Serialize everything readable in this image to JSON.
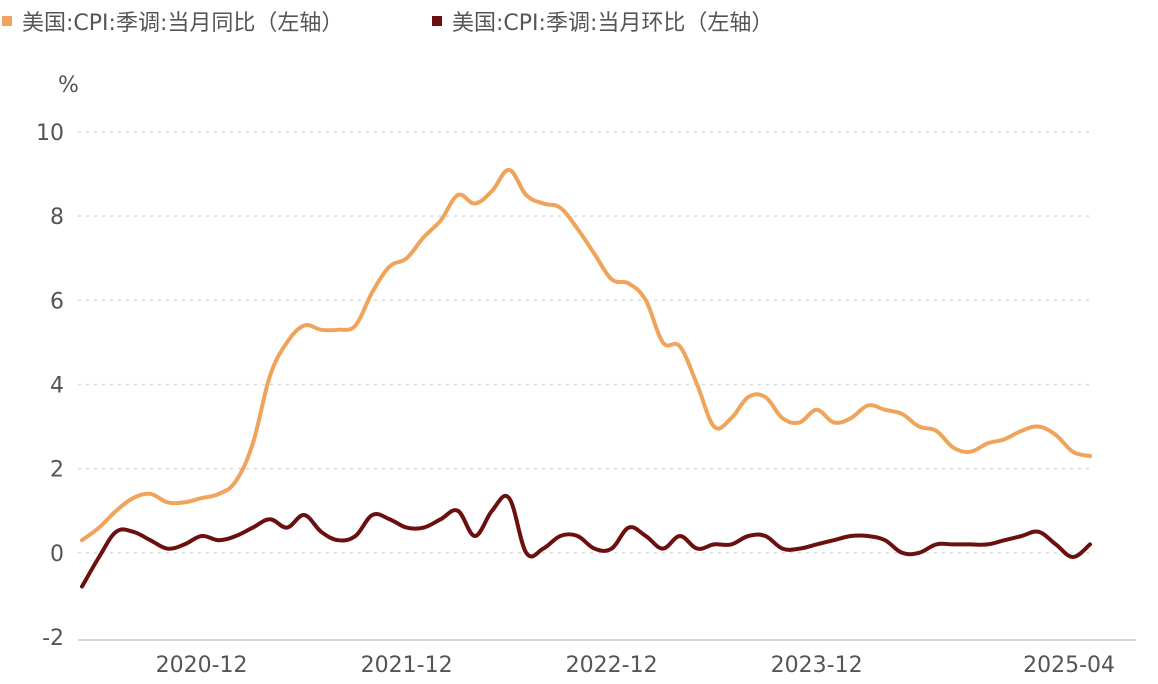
{
  "chart_data": {
    "type": "line",
    "ylabel": "%",
    "ylim": [
      -2,
      10
    ],
    "yticks": [
      10,
      8,
      6,
      4,
      2,
      0,
      -2
    ],
    "x_ticks": [
      "2020-12",
      "2021-12",
      "2022-12",
      "2023-12",
      "2025-04"
    ],
    "x_range": [
      "2020-05",
      "2025-04"
    ],
    "grid": "horizontal dashed",
    "legend": {
      "placement": "top-left",
      "entries": [
        {
          "label": "美国:CPI:季调:当月同比（左轴）",
          "color": "#f0a35a"
        },
        {
          "label": "美国:CPI:季调:当月环比（左轴）",
          "color": "#6b0f0f"
        }
      ]
    },
    "x": [
      "2020-05",
      "2020-06",
      "2020-07",
      "2020-08",
      "2020-09",
      "2020-10",
      "2020-11",
      "2020-12",
      "2021-01",
      "2021-02",
      "2021-03",
      "2021-04",
      "2021-05",
      "2021-06",
      "2021-07",
      "2021-08",
      "2021-09",
      "2021-10",
      "2021-11",
      "2021-12",
      "2022-01",
      "2022-02",
      "2022-03",
      "2022-04",
      "2022-05",
      "2022-06",
      "2022-07",
      "2022-08",
      "2022-09",
      "2022-10",
      "2022-11",
      "2022-12",
      "2023-01",
      "2023-02",
      "2023-03",
      "2023-04",
      "2023-05",
      "2023-06",
      "2023-07",
      "2023-08",
      "2023-09",
      "2023-10",
      "2023-11",
      "2023-12",
      "2024-01",
      "2024-02",
      "2024-03",
      "2024-04",
      "2024-05",
      "2024-06",
      "2024-07",
      "2024-08",
      "2024-09",
      "2024-10",
      "2024-11",
      "2024-12",
      "2025-01",
      "2025-02",
      "2025-03",
      "2025-04"
    ],
    "series": [
      {
        "name": "美国:CPI:季调:当月同比（左轴）",
        "color": "#f0a35a",
        "values": [
          0.3,
          0.6,
          1.0,
          1.3,
          1.4,
          1.2,
          1.2,
          1.3,
          1.4,
          1.7,
          2.6,
          4.2,
          5.0,
          5.4,
          5.3,
          5.3,
          5.4,
          6.2,
          6.8,
          7.0,
          7.5,
          7.9,
          8.5,
          8.3,
          8.6,
          9.1,
          8.5,
          8.3,
          8.2,
          7.7,
          7.1,
          6.5,
          6.4,
          6.0,
          5.0,
          4.9,
          4.0,
          3.0,
          3.2,
          3.7,
          3.7,
          3.2,
          3.1,
          3.4,
          3.1,
          3.2,
          3.5,
          3.4,
          3.3,
          3.0,
          2.9,
          2.5,
          2.4,
          2.6,
          2.7,
          2.9,
          3.0,
          2.8,
          2.4,
          2.3
        ]
      },
      {
        "name": "美国:CPI:季调:当月环比（左轴）",
        "color": "#6b0f0f",
        "values": [
          -0.8,
          -0.1,
          0.5,
          0.5,
          0.3,
          0.1,
          0.2,
          0.4,
          0.3,
          0.4,
          0.6,
          0.8,
          0.6,
          0.9,
          0.5,
          0.3,
          0.4,
          0.9,
          0.8,
          0.6,
          0.6,
          0.8,
          1.0,
          0.4,
          1.0,
          1.3,
          0.0,
          0.1,
          0.4,
          0.4,
          0.1,
          0.1,
          0.6,
          0.4,
          0.1,
          0.4,
          0.1,
          0.2,
          0.2,
          0.4,
          0.4,
          0.1,
          0.1,
          0.2,
          0.3,
          0.4,
          0.4,
          0.3,
          0.0,
          0.0,
          0.2,
          0.2,
          0.2,
          0.2,
          0.3,
          0.4,
          0.5,
          0.2,
          -0.1,
          0.2
        ]
      }
    ]
  }
}
